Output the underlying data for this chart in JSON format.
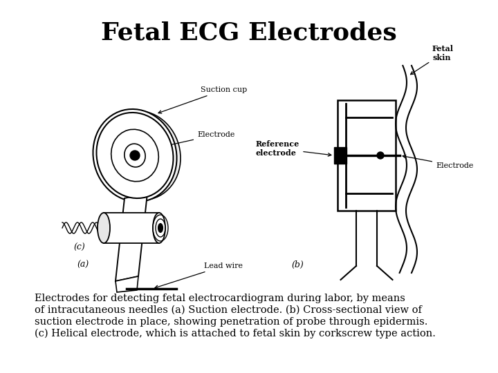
{
  "title": "Fetal ECG Electrodes",
  "title_fontsize": 26,
  "title_fontweight": "bold",
  "background_color": "#ffffff",
  "caption_lines": [
    "Electrodes for detecting fetal electrocardiogram during labor, by means",
    "of intracutaneous needles (a) Suction electrode. (b) Cross-sectional view of",
    "suction electrode in place, showing penetration of probe through epidermis.",
    "(c) Helical electrode, which is attached to fetal skin by corkscrew type action."
  ],
  "caption_fontsize": 10.5,
  "label_a": "(a)",
  "label_b": "(b)",
  "label_c": "(c)"
}
